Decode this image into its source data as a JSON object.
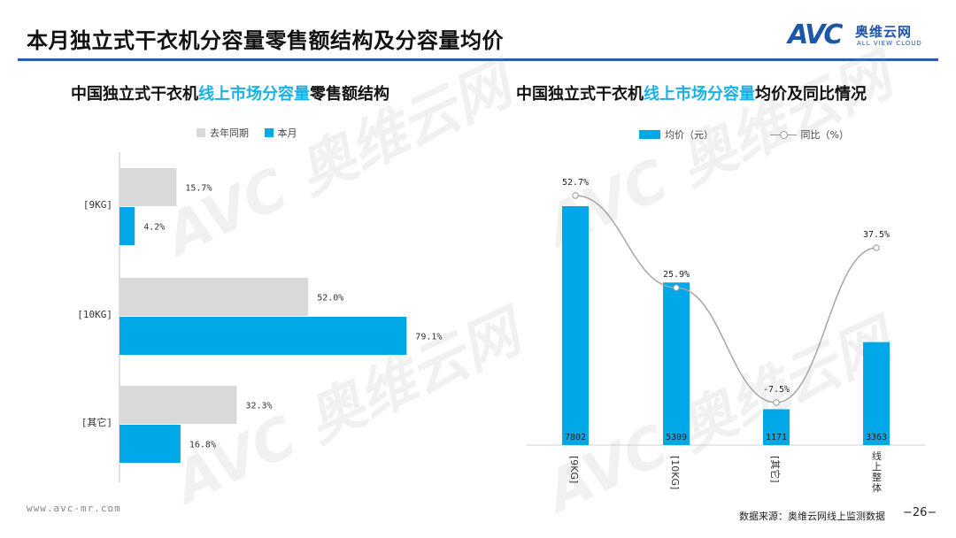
{
  "header": {
    "title": "本月独立式干衣机分容量零售额结构及分容量均价",
    "logo_mark": "AVC",
    "logo_cn": "奥维云网",
    "logo_en": "ALL VIEW CLOUD"
  },
  "left_chart": {
    "title_pre": "中国独立式干衣机",
    "title_hl": "线上市场分容量",
    "title_post": "零售额结构",
    "legend": [
      "去年同期",
      "本月"
    ]
  },
  "right_chart": {
    "title_pre": "中国独立式干衣机",
    "title_hl": "线上市场分容量",
    "title_post": "均价及同比情况",
    "legend": [
      "均价（元）",
      "同比（%）"
    ]
  },
  "footer": {
    "url": "www.avc-mr.com",
    "source": "数据来源：奥维云网线上监测数据",
    "page": "−26−"
  },
  "colors": {
    "gray": "#d9d9d9",
    "blue": "#00a8e8",
    "accent": "#1ab0e8",
    "rule": "#2a5db0",
    "line": "#a6a6a6"
  },
  "chart_data": [
    {
      "type": "bar",
      "orientation": "horizontal",
      "categories": [
        "[9KG]",
        "[10KG]",
        "[其它]"
      ],
      "series": [
        {
          "name": "去年同期",
          "values": [
            15.7,
            52.0,
            32.3
          ],
          "labels": [
            "15.7%",
            "52.0%",
            "32.3%"
          ]
        },
        {
          "name": "本月",
          "values": [
            4.2,
            79.1,
            16.8
          ],
          "labels": [
            "4.2%",
            "79.1%",
            "16.8%"
          ]
        }
      ],
      "xlim": [
        0,
        100
      ]
    },
    {
      "type": "bar",
      "categories": [
        "[9KG]",
        "[10KG]",
        "[其它]",
        "线上整体"
      ],
      "series": [
        {
          "name": "均价（元）",
          "type": "bar",
          "values": [
            7802,
            5309,
            1171,
            3363
          ],
          "labels": [
            "7802",
            "5309",
            "1171",
            "3363"
          ]
        },
        {
          "name": "同比（%）",
          "type": "line",
          "values": [
            52.7,
            25.9,
            -7.5,
            37.5
          ],
          "labels": [
            "52.7%",
            "25.9%",
            "-7.5%",
            "37.5%"
          ]
        }
      ],
      "ylim": [
        0,
        8000
      ]
    }
  ]
}
